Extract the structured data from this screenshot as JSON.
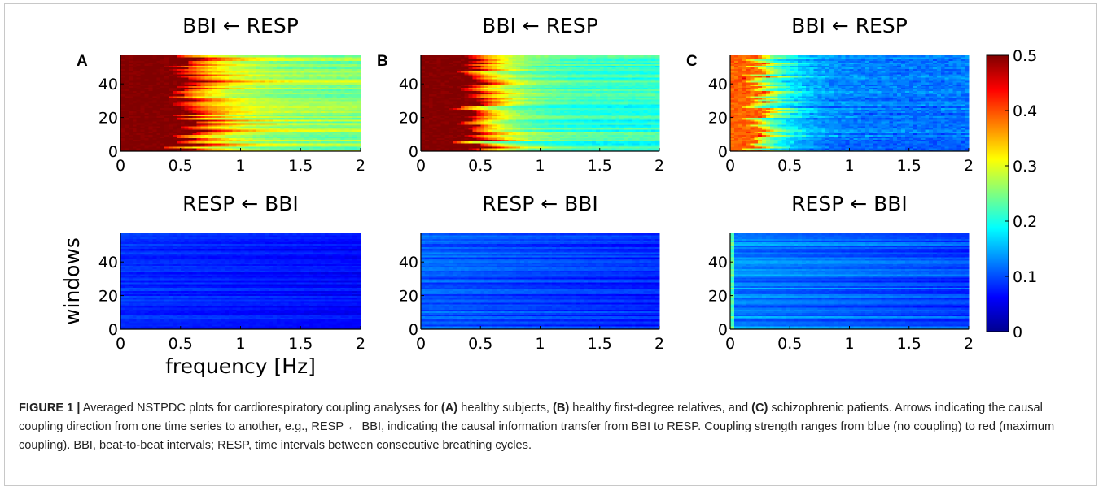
{
  "chart_data": [
    {
      "type": "heatmap",
      "panel": "A",
      "title": "BBI ← RESP",
      "xlabel": "",
      "ylabel": "",
      "x_ticks": [
        "0",
        "0.5",
        "1",
        "1.5",
        "2"
      ],
      "y_ticks": [
        "0",
        "20",
        "40"
      ],
      "xlim": [
        0,
        2
      ],
      "ylim": [
        0,
        57
      ],
      "values_range": [
        0,
        0.5
      ]
    },
    {
      "type": "heatmap",
      "panel": "B",
      "title": "BBI ← RESP",
      "xlabel": "",
      "ylabel": "",
      "x_ticks": [
        "0",
        "0.5",
        "1",
        "1.5",
        "2"
      ],
      "y_ticks": [
        "0",
        "20",
        "40"
      ],
      "xlim": [
        0,
        2
      ],
      "ylim": [
        0,
        57
      ],
      "values_range": [
        0,
        0.5
      ]
    },
    {
      "type": "heatmap",
      "panel": "C",
      "title": "BBI ← RESP",
      "xlabel": "",
      "ylabel": "",
      "x_ticks": [
        "0",
        "0.5",
        "1",
        "1.5",
        "2"
      ],
      "y_ticks": [
        "0",
        "20",
        "40"
      ],
      "xlim": [
        0,
        2
      ],
      "ylim": [
        0,
        57
      ],
      "values_range": [
        0,
        0.5
      ]
    },
    {
      "type": "heatmap",
      "panel": "",
      "title": "RESP ← BBI",
      "xlabel": "frequency [Hz]",
      "ylabel": "windows",
      "x_ticks": [
        "0",
        "0.5",
        "1",
        "1.5",
        "2"
      ],
      "y_ticks": [
        "0",
        "20",
        "40"
      ],
      "xlim": [
        0,
        2
      ],
      "ylim": [
        0,
        57
      ],
      "values_range": [
        0,
        0.5
      ]
    },
    {
      "type": "heatmap",
      "panel": "",
      "title": "RESP ← BBI",
      "xlabel": "",
      "ylabel": "",
      "x_ticks": [
        "0",
        "0.5",
        "1",
        "1.5",
        "2"
      ],
      "y_ticks": [
        "0",
        "20",
        "40"
      ],
      "xlim": [
        0,
        2
      ],
      "ylim": [
        0,
        57
      ],
      "values_range": [
        0,
        0.5
      ]
    },
    {
      "type": "heatmap",
      "panel": "",
      "title": "RESP ← BBI",
      "xlabel": "",
      "ylabel": "",
      "x_ticks": [
        "0",
        "0.5",
        "1",
        "1.5",
        "2"
      ],
      "y_ticks": [
        "0",
        "20",
        "40"
      ],
      "xlim": [
        0,
        2
      ],
      "ylim": [
        0,
        57
      ],
      "values_range": [
        0,
        0.5
      ]
    }
  ],
  "colorbar": {
    "ticks": [
      "0",
      "0.1",
      "0.2",
      "0.3",
      "0.4",
      "0.5"
    ],
    "min": 0,
    "max": 0.5,
    "colormap": "jet"
  },
  "caption": {
    "label": "FIGURE 1 |",
    "t1": " Averaged NSTPDC plots for cardiorespiratory coupling analyses for ",
    "a": "(A)",
    "t2": " healthy subjects, ",
    "b": "(B)",
    "t3": " healthy first-degree relatives, and ",
    "c": "(C)",
    "t4": " schizophrenic patients. Arrows indicating the causal coupling direction from one time series to another, e.g., RESP ← BBI, indicating the causal information transfer from BBI to RESP. Coupling strength ranges from blue (no coupling) to red (maximum coupling). BBI, beat-to-beat intervals; RESP, time intervals between consecutive breathing cycles."
  }
}
